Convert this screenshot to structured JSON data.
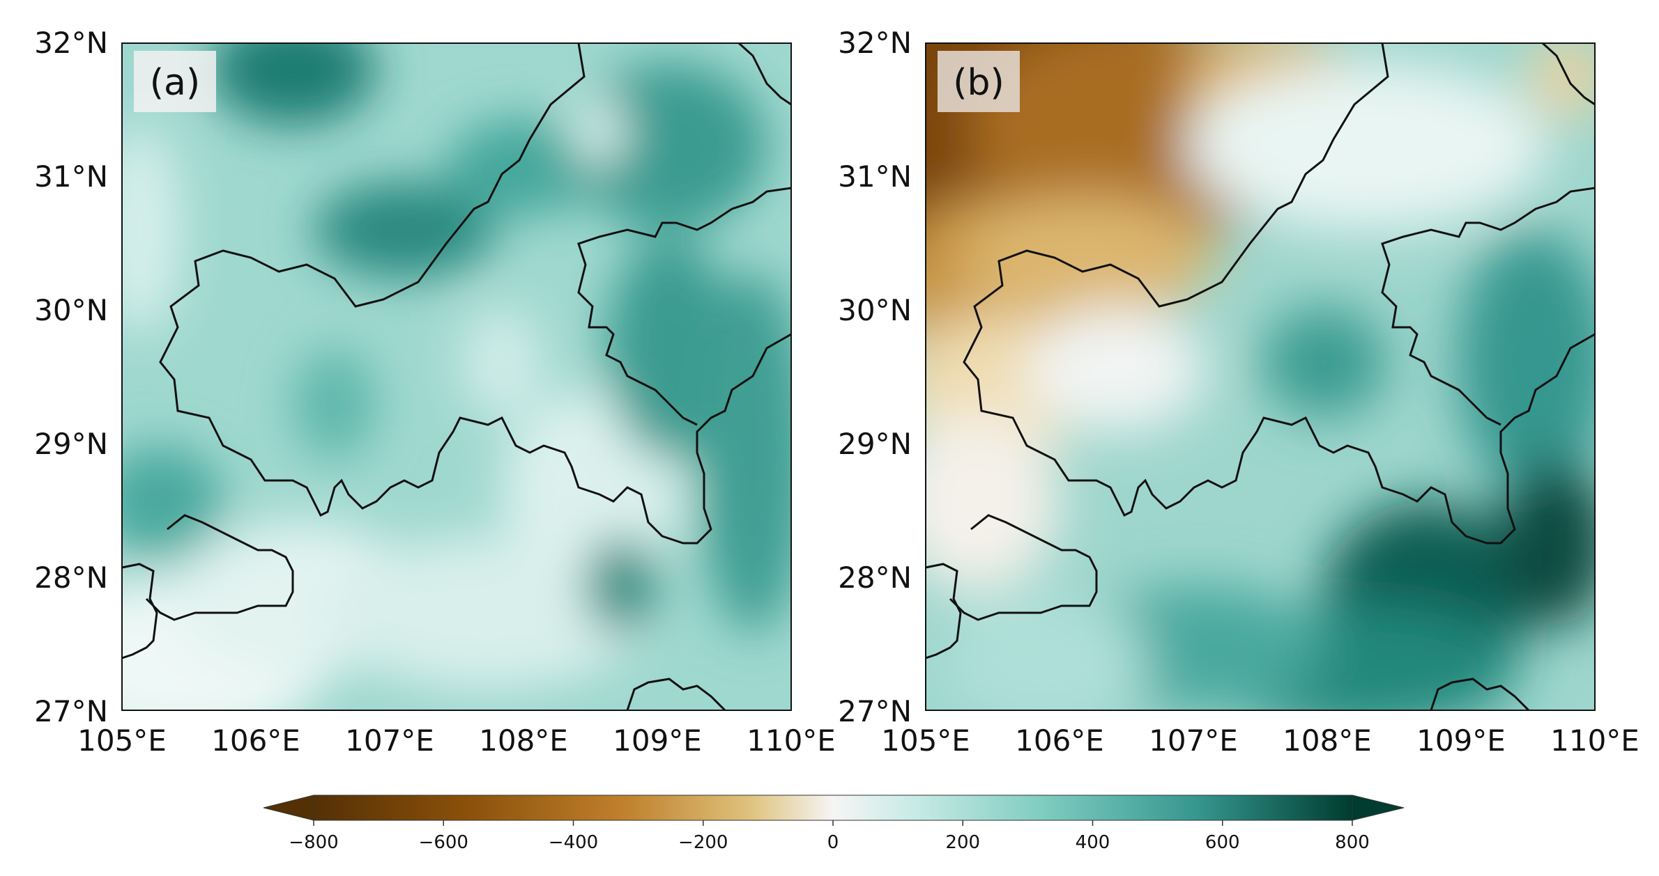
{
  "figure": {
    "panels": [
      {
        "id": "a",
        "label": "(a)",
        "palette": "green"
      },
      {
        "id": "b",
        "label": "(b)",
        "palette": "diverging"
      }
    ],
    "y_ticks": [
      "32°N",
      "31°N",
      "30°N",
      "29°N",
      "28°N",
      "27°N"
    ],
    "x_ticks": [
      "105°E",
      "106°E",
      "107°E",
      "108°E",
      "109°E",
      "110°E"
    ],
    "colorbar": {
      "min": -800,
      "max": 800,
      "extend": "both",
      "ticks": [
        "−800",
        "−600",
        "−400",
        "−200",
        "0",
        "200",
        "400",
        "600",
        "800"
      ],
      "colors": {
        "neg_strong": "#543005",
        "neg_mid": "#bf812d",
        "neg_light": "#f6e8c3",
        "zero": "#f5f5f5",
        "pos_light": "#c7eae5",
        "pos_mid": "#35978f",
        "pos_strong": "#003c30"
      }
    }
  }
}
